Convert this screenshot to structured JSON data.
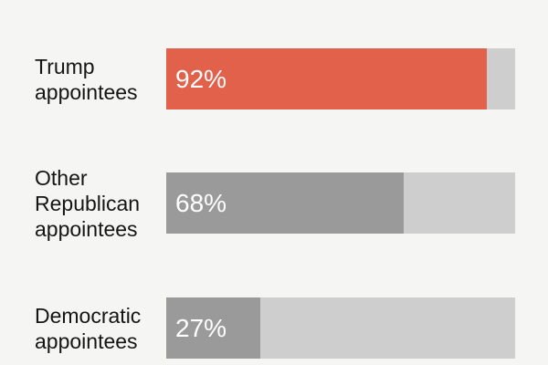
{
  "chart_data": {
    "type": "bar",
    "orientation": "horizontal",
    "title": "",
    "xlabel": "",
    "ylabel": "",
    "xlim": [
      0,
      100
    ],
    "unit": "%",
    "grid": false,
    "legend": false,
    "value_label_position": "inside-left",
    "category_label_position": "left",
    "categories": [
      "Trump appointees",
      "Other Republican appointees",
      "Democratic appointees"
    ],
    "values": [
      92,
      68,
      27
    ],
    "value_labels": [
      "92%",
      "68%",
      "27%"
    ],
    "bar_colors": [
      "#e2614a",
      "#9a9a9a",
      "#9a9a9a"
    ],
    "track_color": "#cecece"
  },
  "rows": [
    {
      "label": "Trump\nappointees",
      "value": 92,
      "value_label": "92%",
      "fill_color": "#e2614a"
    },
    {
      "label": "Other\nRepublican\nappointees",
      "value": 68,
      "value_label": "68%",
      "fill_color": "#9a9a9a"
    },
    {
      "label": "Democratic\nappointees",
      "value": 27,
      "value_label": "27%",
      "fill_color": "#9a9a9a"
    }
  ],
  "colors": {
    "background": "#f5f5f3",
    "track": "#cecece",
    "accent_red": "#e2614a",
    "bar_gray": "#9a9a9a",
    "label_text": "#151515",
    "value_text": "#ffffff"
  }
}
